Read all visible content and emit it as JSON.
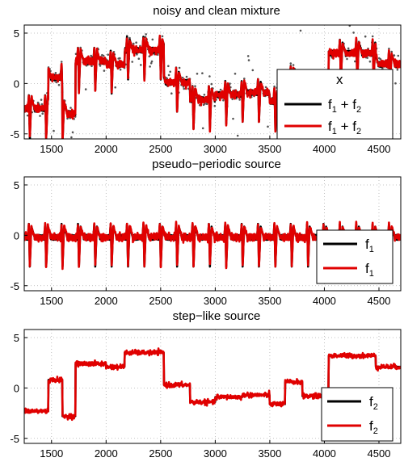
{
  "chart_data": [
    {
      "type": "line",
      "title": "noisy and clean mixture",
      "xlim": [
        1250,
        4700
      ],
      "ylim": [
        -5.5,
        5.8
      ],
      "xticks": [
        1500,
        2000,
        2500,
        3000,
        3500,
        4000,
        4500
      ],
      "yticks": [
        -5,
        0,
        5
      ],
      "grid": true,
      "legend_position": "bottom-right",
      "series": [
        {
          "name": "x",
          "style": "dots",
          "color": "#555555",
          "components": [
            "pseudo-periodic",
            "step-like",
            "noise"
          ]
        },
        {
          "name": "f1 + f2",
          "style": "line",
          "color": "#000000",
          "components": [
            "pseudo-periodic",
            "step-like"
          ]
        },
        {
          "name": "f1 + f2",
          "style": "line",
          "color": "#e00000",
          "components": [
            "pseudo-periodic",
            "step-like",
            "small-error"
          ]
        }
      ]
    },
    {
      "type": "line",
      "title": "pseudo−periodic source",
      "xlim": [
        1250,
        4700
      ],
      "ylim": [
        -5.5,
        5.8
      ],
      "xticks": [
        1500,
        2000,
        2500,
        3000,
        3500,
        4000,
        4500
      ],
      "yticks": [
        -5,
        0,
        5
      ],
      "grid": true,
      "legend_position": "bottom-right",
      "period": 150,
      "spike_max": 1.3,
      "spike_min": -3.1,
      "series": [
        {
          "name": "f1",
          "style": "line",
          "color": "#000000",
          "components": [
            "pseudo-periodic"
          ]
        },
        {
          "name": "f1",
          "style": "line",
          "color": "#e00000",
          "components": [
            "pseudo-periodic",
            "small-error"
          ]
        }
      ]
    },
    {
      "type": "line",
      "title": "step−like source",
      "xlim": [
        1250,
        4700
      ],
      "ylim": [
        -5.5,
        5.8
      ],
      "xticks": [
        1500,
        2000,
        2500,
        3000,
        3500,
        4000,
        4500
      ],
      "yticks": [
        -5,
        0,
        5
      ],
      "grid": true,
      "legend_position": "bottom-right",
      "steps": [
        {
          "x": [
            1250,
            1470
          ],
          "y": -2.3
        },
        {
          "x": [
            1470,
            1600
          ],
          "y": 0.8
        },
        {
          "x": [
            1600,
            1720
          ],
          "y": -2.8
        },
        {
          "x": [
            1720,
            2000
          ],
          "y": 2.4
        },
        {
          "x": [
            2000,
            2170
          ],
          "y": 2.1
        },
        {
          "x": [
            2170,
            2530
          ],
          "y": 3.5
        },
        {
          "x": [
            2530,
            2770
          ],
          "y": 0.3
        },
        {
          "x": [
            2770,
            3000
          ],
          "y": -1.4
        },
        {
          "x": [
            3000,
            3250
          ],
          "y": -0.9
        },
        {
          "x": [
            3250,
            3500
          ],
          "y": -0.7
        },
        {
          "x": [
            3500,
            3640
          ],
          "y": -1.6
        },
        {
          "x": [
            3640,
            3800
          ],
          "y": 0.6
        },
        {
          "x": [
            3800,
            4040
          ],
          "y": -0.8
        },
        {
          "x": [
            4040,
            4470
          ],
          "y": 3.2
        },
        {
          "x": [
            4470,
            4700
          ],
          "y": 2.1
        }
      ],
      "series": [
        {
          "name": "f2",
          "style": "line",
          "color": "#000000",
          "components": [
            "step-like"
          ]
        },
        {
          "name": "f2",
          "style": "line",
          "color": "#e00000",
          "components": [
            "step-like",
            "small-error"
          ]
        }
      ]
    }
  ]
}
